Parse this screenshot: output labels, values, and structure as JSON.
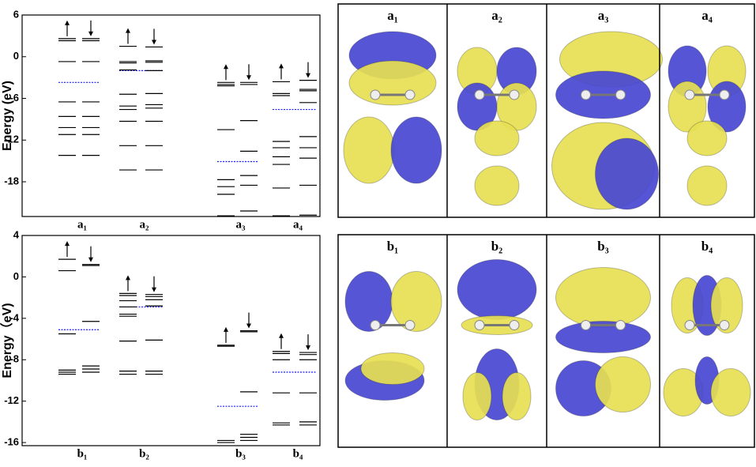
{
  "chart_data": [
    {
      "type": "energy-levels",
      "ylabel": "Energy (eV)",
      "ylim": [
        -23,
        6
      ],
      "yticks": [
        6,
        0,
        -6,
        -12,
        -18
      ],
      "level_color": "#000000",
      "fermi_color": "#1a1aff",
      "groups": [
        {
          "label": "a₁",
          "up": [
            2.6,
            2.3,
            -0.7,
            -6.5,
            -8.6,
            -10.2,
            -11.2,
            -14.2
          ],
          "down": [
            2.6,
            2.3,
            -0.7,
            -6.5,
            -8.6,
            -10.2,
            -11.2,
            -14.2
          ],
          "fermi": -3.7
        },
        {
          "label": "a₂",
          "up": [
            1.5,
            -0.7,
            -0.9,
            -1.9,
            -5.4,
            -7.1,
            -7.6,
            -9.3,
            -12.8,
            -16.3
          ],
          "down": [
            1.4,
            -0.6,
            -0.8,
            -2.0,
            -5.3,
            -6.9,
            -7.4,
            -9.3,
            -12.8,
            -16.3
          ],
          "fermi": -2.0
        },
        {
          "label": "a₃",
          "up": [
            -3.7,
            -4.0,
            -4.2,
            -10.5,
            -17.7,
            -18.7,
            -19.8,
            -22.9
          ],
          "down": [
            -3.7,
            -4.0,
            -9.2,
            -13.6,
            -17.1,
            -18.5,
            -22.2
          ],
          "fermi": -15.1
        },
        {
          "label": "a₄",
          "up": [
            -3.6,
            -5.3,
            -5.6,
            -12.2,
            -13.1,
            -14.4,
            -15.5,
            -18.9,
            -22.9
          ],
          "down": [
            -3.4,
            -4.7,
            -4.9,
            -6.6,
            -11.5,
            -13.1,
            -14.6,
            -18.5,
            -22.8
          ],
          "fermi": -7.6
        }
      ]
    },
    {
      "type": "energy-levels",
      "ylabel": "Energy（eV)",
      "ylim": [
        -16.3,
        4
      ],
      "yticks": [
        4,
        0,
        -4,
        -8,
        -12,
        -16
      ],
      "level_color": "#000000",
      "fermi_color": "#1a1aff",
      "groups": [
        {
          "label": "b₁",
          "up": [
            1.7,
            0.6,
            -5.5,
            -9.0,
            -9.2,
            -9.4
          ],
          "down": [
            1.2,
            1.1,
            -4.3,
            -8.6,
            -8.9,
            -9.2
          ],
          "fermi": -5.1
        },
        {
          "label": "b₂",
          "up": [
            -1.6,
            -1.8,
            -2.3,
            -2.9,
            -3.6,
            -3.8,
            -6.2,
            -9.1,
            -9.4
          ],
          "down": [
            -1.7,
            -1.9,
            -2.2,
            -2.8,
            -6.1,
            -9.1,
            -9.4
          ],
          "fermi": -2.9
        },
        {
          "label": "b₃",
          "up": [
            -6.6,
            -6.7,
            -15.8,
            -16.0
          ],
          "down": [
            -5.2,
            -5.3,
            -11.1,
            -15.2,
            -15.5,
            -15.8
          ],
          "fermi": -12.5
        },
        {
          "label": "b₄",
          "up": [
            -7.2,
            -7.4,
            -8.0,
            -11.2,
            -14.1,
            -14.3
          ],
          "down": [
            -7.3,
            -7.5,
            -8.0,
            -11.2,
            -14.0,
            -14.3
          ],
          "fermi": -9.2
        }
      ]
    }
  ],
  "orbital_panels": {
    "top": [
      "a₁",
      "a₂",
      "a₃",
      "a₄"
    ],
    "bottom": [
      "b₁",
      "b₂",
      "b₃",
      "b₄"
    ]
  }
}
